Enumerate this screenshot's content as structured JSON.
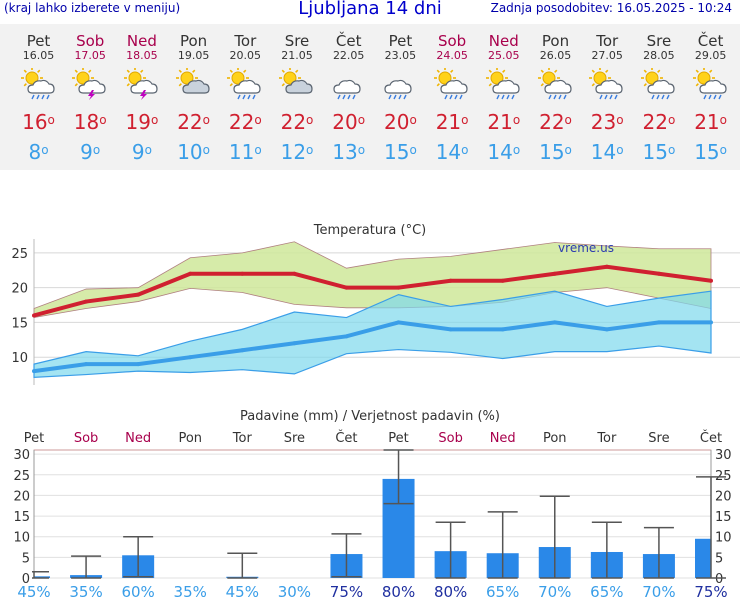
{
  "header": {
    "left_note": "(kraj lahko izberete v meniju)",
    "title": "Ljubljana 14 dni",
    "updated": "Zadnja posodobitev: 16.05.2025 - 10:24"
  },
  "colors": {
    "max": "#d02030",
    "min": "#3a9ee8",
    "weekend": "#a8004c",
    "bar": "#2a88e8"
  },
  "days": [
    {
      "name": "Pet",
      "date": "16.05",
      "weekend": false,
      "icon": "sun-cloud-rain-icon",
      "tmax": "16",
      "tmin": "8"
    },
    {
      "name": "Sob",
      "date": "17.05",
      "weekend": true,
      "icon": "sun-cloud-thunder-icon",
      "tmax": "18",
      "tmin": "9"
    },
    {
      "name": "Ned",
      "date": "18.05",
      "weekend": true,
      "icon": "sun-cloud-thunder-icon",
      "tmax": "19",
      "tmin": "9"
    },
    {
      "name": "Pon",
      "date": "19.05",
      "weekend": false,
      "icon": "sun-cloud-icon",
      "tmax": "22",
      "tmin": "10"
    },
    {
      "name": "Tor",
      "date": "20.05",
      "weekend": false,
      "icon": "sun-cloud-rain-icon",
      "tmax": "22",
      "tmin": "11"
    },
    {
      "name": "Sre",
      "date": "21.05",
      "weekend": false,
      "icon": "sun-cloud-icon",
      "tmax": "22",
      "tmin": "12"
    },
    {
      "name": "Čet",
      "date": "22.05",
      "weekend": false,
      "icon": "cloud-rain-icon",
      "tmax": "20",
      "tmin": "13"
    },
    {
      "name": "Pet",
      "date": "23.05",
      "weekend": false,
      "icon": "cloud-rain-icon",
      "tmax": "20",
      "tmin": "15"
    },
    {
      "name": "Sob",
      "date": "24.05",
      "weekend": true,
      "icon": "sun-cloud-rain-icon",
      "tmax": "21",
      "tmin": "14"
    },
    {
      "name": "Ned",
      "date": "25.05",
      "weekend": true,
      "icon": "sun-cloud-rain-icon",
      "tmax": "21",
      "tmin": "14"
    },
    {
      "name": "Pon",
      "date": "26.05",
      "weekend": false,
      "icon": "sun-cloud-rain-icon",
      "tmax": "22",
      "tmin": "15"
    },
    {
      "name": "Tor",
      "date": "27.05",
      "weekend": false,
      "icon": "sun-cloud-rain-icon",
      "tmax": "23",
      "tmin": "14"
    },
    {
      "name": "Sre",
      "date": "28.05",
      "weekend": false,
      "icon": "sun-cloud-rain-icon",
      "tmax": "22",
      "tmin": "15"
    },
    {
      "name": "Čet",
      "date": "29.05",
      "weekend": false,
      "icon": "sun-cloud-rain-icon",
      "tmax": "21",
      "tmin": "15"
    }
  ],
  "chart_data": [
    {
      "type": "line",
      "title": "Temperatura (°C)",
      "watermark": "vreme.us",
      "ylim": [
        6,
        27
      ],
      "yticks": [
        "10",
        "15",
        "20",
        "25"
      ],
      "series": [
        {
          "name": "max",
          "values": [
            16,
            18,
            19,
            22,
            22,
            22,
            20,
            20,
            21,
            21,
            22,
            23,
            22,
            21
          ]
        },
        {
          "name": "max_upper",
          "values": [
            17,
            19.8,
            20,
            24.3,
            25,
            26.6,
            22.8,
            24.1,
            24.5,
            25.5,
            26.5,
            26,
            25.6,
            25.6
          ]
        },
        {
          "name": "max_lower",
          "values": [
            15.7,
            17,
            18,
            19.9,
            19.3,
            17.6,
            17.1,
            17.1,
            17.3,
            17.9,
            19.3,
            20,
            18.5,
            17
          ]
        },
        {
          "name": "min",
          "values": [
            8,
            9,
            9,
            10,
            11,
            12,
            13,
            15,
            14,
            14,
            15,
            14,
            15,
            15
          ]
        },
        {
          "name": "min_upper",
          "values": [
            9,
            10.8,
            10.2,
            12.3,
            14,
            16.5,
            15.7,
            19,
            17.3,
            18.3,
            19.5,
            17.3,
            18.5,
            19.5
          ]
        },
        {
          "name": "min_lower",
          "values": [
            7.1,
            7.5,
            8,
            7.8,
            8.2,
            7.6,
            10.5,
            11.1,
            10.7,
            9.8,
            10.8,
            10.8,
            11.6,
            10.6
          ]
        }
      ]
    },
    {
      "type": "bar",
      "title": "Padavine (mm) / Verjetnost padavin (%)",
      "ylim": [
        0,
        31
      ],
      "yticks": [
        "0",
        "5",
        "10",
        "15",
        "20",
        "25",
        "30"
      ],
      "categories": [
        "Pet",
        "Sob",
        "Ned",
        "Pon",
        "Tor",
        "Sre",
        "Čet",
        "Pet",
        "Sob",
        "Ned",
        "Pon",
        "Tor",
        "Sre",
        "Čet"
      ],
      "weekend": [
        false,
        true,
        true,
        false,
        false,
        false,
        false,
        false,
        true,
        true,
        false,
        false,
        false,
        false
      ],
      "values": [
        0.4,
        0.7,
        5.5,
        0,
        0.3,
        0,
        5.8,
        24,
        6.5,
        6,
        7.5,
        6.3,
        5.8,
        9.5
      ],
      "err_low": [
        0,
        0,
        0.3,
        0,
        0,
        0,
        0.3,
        18,
        0,
        0,
        0,
        0,
        0,
        0
      ],
      "err_high": [
        1.5,
        5.3,
        10,
        0,
        6,
        0,
        10.7,
        31,
        13.5,
        16,
        19.8,
        13.5,
        12.2,
        24.5
      ],
      "probability": [
        "45%",
        "35%",
        "60%",
        "35%",
        "45%",
        "30%",
        "75%",
        "80%",
        "80%",
        "65%",
        "70%",
        "65%",
        "70%",
        "75%"
      ]
    }
  ]
}
